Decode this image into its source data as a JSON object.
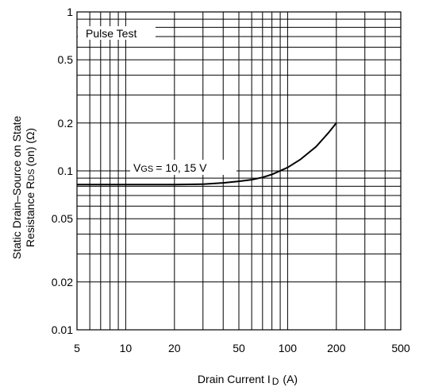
{
  "chart_data": {
    "type": "line",
    "xscale": "log",
    "yscale": "log",
    "xlim": [
      5,
      500
    ],
    "ylim": [
      0.01,
      1
    ],
    "xticks": [
      5,
      10,
      20,
      50,
      100,
      200,
      500
    ],
    "yticks": [
      0.01,
      0.02,
      0.05,
      0.1,
      0.2,
      0.5,
      1
    ],
    "xtick_labels": [
      "5",
      "10",
      "20",
      "50",
      "100",
      "200",
      "500"
    ],
    "ytick_labels": [
      "0.01",
      "0.02",
      "0.05",
      "0.1",
      "0.2",
      "0.5",
      "1"
    ],
    "xlabel_main": "Drain Current I",
    "xlabel_sub": "D",
    "xlabel_unit": "(A)",
    "ylabel_line1": "Static Drain–Source on State",
    "ylabel_line2_a": "Resistance R",
    "ylabel_line2_sub": "DS",
    "ylabel_line2_b": "(on) (Ω)",
    "grid": true,
    "annotations": {
      "pulse_test": "Pulse Test",
      "series_label_v": "V",
      "series_label_sub": "GS",
      "series_label_rest": "= 10, 15 V"
    },
    "series": [
      {
        "x": [
          5,
          10,
          20,
          30,
          40,
          50,
          60,
          70,
          80,
          100,
          120,
          150,
          180,
          200
        ],
        "y": [
          0.082,
          0.082,
          0.082,
          0.0825,
          0.084,
          0.086,
          0.088,
          0.091,
          0.095,
          0.105,
          0.118,
          0.142,
          0.175,
          0.2
        ]
      }
    ]
  }
}
